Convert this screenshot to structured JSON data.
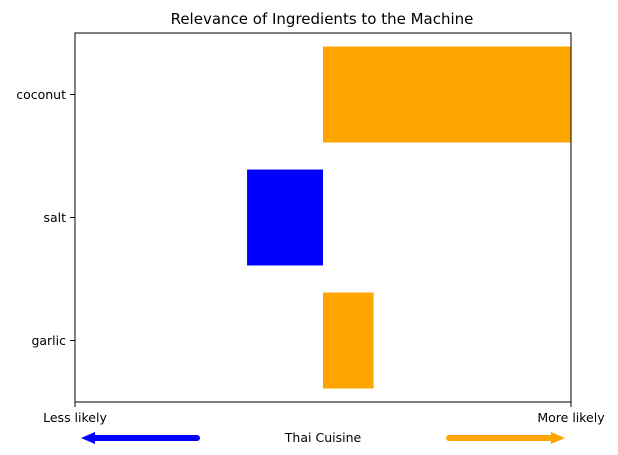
{
  "chart_data": {
    "type": "bar",
    "orientation": "horizontal",
    "title": "Relevance of Ingredients to the Machine",
    "categories": [
      "garlic",
      "salt",
      "coconut"
    ],
    "values": [
      0.1,
      -0.15,
      0.49
    ],
    "bar_colors": [
      "#FFA500",
      "#0000FF",
      "#FFA500"
    ],
    "xlim": [
      -0.49,
      0.49
    ],
    "x_left_label": "Less likely",
    "x_right_label": "More likely",
    "xlabel": "Thai Cuisine",
    "left_arrow_color": "#0000FF",
    "right_arrow_color": "#FFA500",
    "grid": false,
    "legend": "none"
  }
}
